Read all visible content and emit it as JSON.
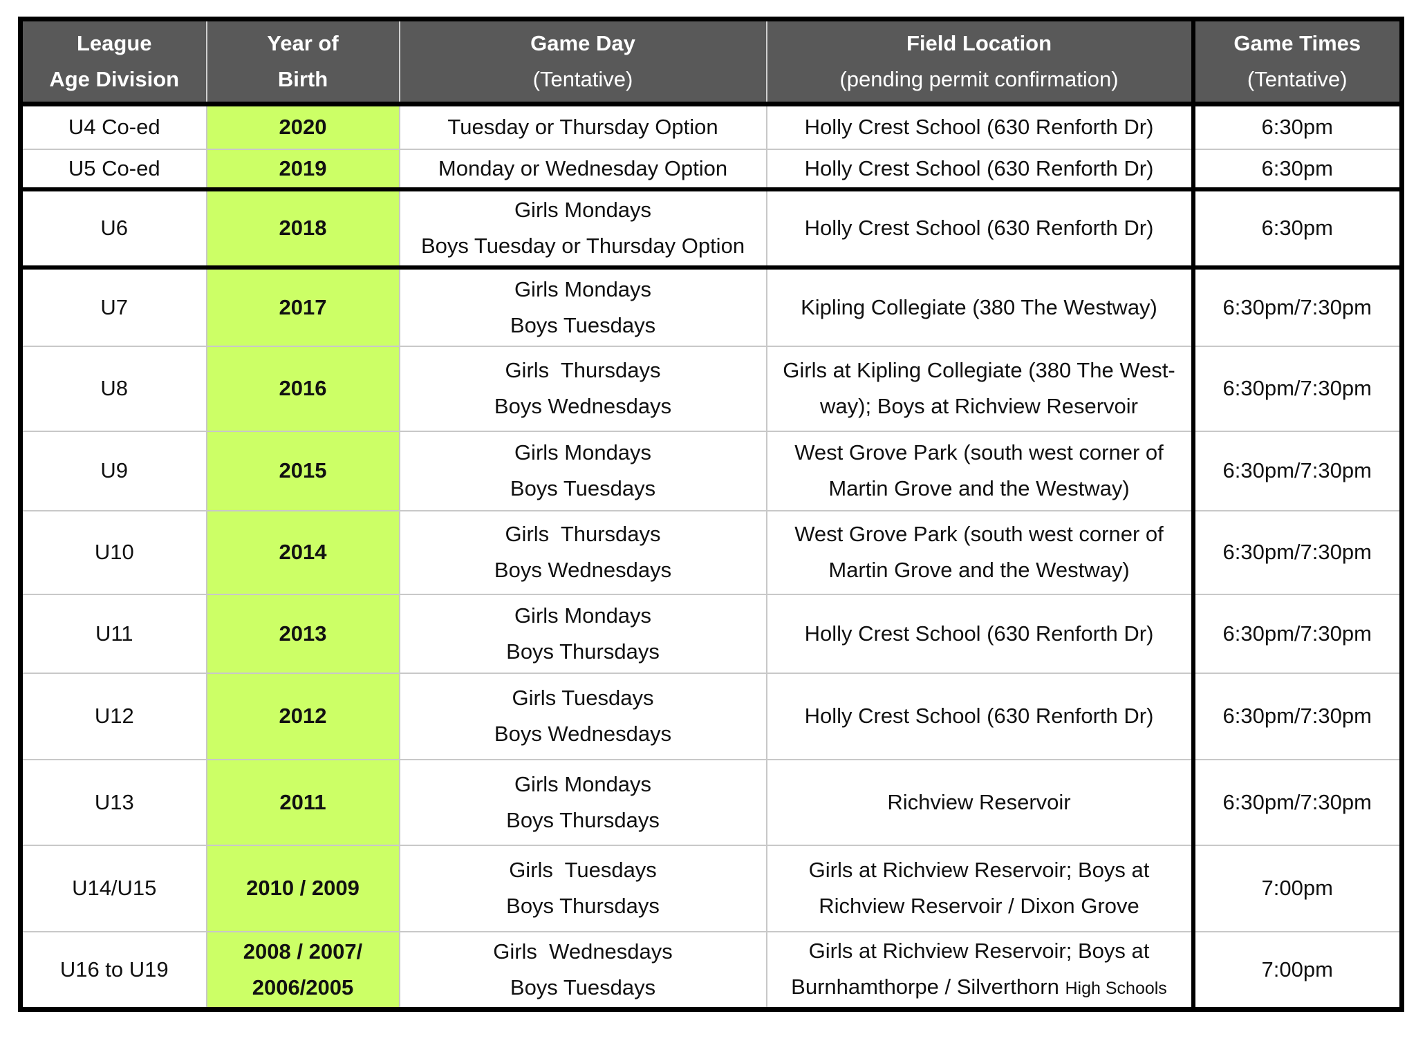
{
  "headers": [
    {
      "line1": "League",
      "line2": "Age Division"
    },
    {
      "line1": "Year of",
      "line2": "Birth"
    },
    {
      "line1": "Game Day",
      "line2": "(Tentative)"
    },
    {
      "line1": "Field Location",
      "line2": "(pending permit confirmation)"
    },
    {
      "line1": "Game Times",
      "line2": "(Tentative)"
    }
  ],
  "rows": [
    {
      "division": "U4 Co-ed",
      "year": "2020",
      "day": [
        "Tuesday or Thursday Option"
      ],
      "location": [
        "Holly Crest School (630 Renforth Dr)"
      ],
      "time": "6:30pm"
    },
    {
      "division": "U5 Co-ed",
      "year": "2019",
      "day": [
        "Monday or Wednesday Option"
      ],
      "location": [
        "Holly Crest School (630 Renforth Dr)"
      ],
      "time": "6:30pm"
    },
    {
      "division": "U6",
      "year": "2018",
      "day": [
        "Girls Mondays",
        "Boys Tuesday or Thursday Option"
      ],
      "location": [
        "Holly Crest School (630 Renforth Dr)"
      ],
      "time": "6:30pm"
    },
    {
      "division": "U7",
      "year": "2017",
      "day": [
        "Girls Mondays",
        "Boys Tuesdays"
      ],
      "location": [
        "Kipling Collegiate (380 The Westway)"
      ],
      "time": "6:30pm/7:30pm"
    },
    {
      "division": "U8",
      "year": "2016",
      "day": [
        "Girls  Thursdays",
        "Boys Wednesdays"
      ],
      "location": [
        "Girls at Kipling Collegiate (380 The West-",
        "way); Boys at Richview Reservoir"
      ],
      "time": "6:30pm/7:30pm"
    },
    {
      "division": "U9",
      "year": "2015",
      "day": [
        "Girls Mondays",
        "Boys Tuesdays"
      ],
      "location": [
        "West Grove Park (south west corner of",
        "Martin Grove and the Westway)"
      ],
      "time": "6:30pm/7:30pm"
    },
    {
      "division": "U10",
      "year": "2014",
      "day": [
        "Girls  Thursdays",
        "Boys Wednesdays"
      ],
      "location": [
        "West Grove Park (south west corner of",
        "Martin Grove and the Westway)"
      ],
      "time": "6:30pm/7:30pm"
    },
    {
      "division": "U11",
      "year": "2013",
      "day": [
        "Girls Mondays",
        "Boys Thursdays"
      ],
      "location": [
        "Holly Crest School (630 Renforth Dr)"
      ],
      "time": "6:30pm/7:30pm"
    },
    {
      "division": "U12",
      "year": "2012",
      "day": [
        "Girls Tuesdays",
        "Boys Wednesdays"
      ],
      "location": [
        "Holly Crest School (630 Renforth Dr)"
      ],
      "time": "6:30pm/7:30pm"
    },
    {
      "division": "U13",
      "year": "2011",
      "day": [
        "Girls Mondays",
        "Boys Thursdays"
      ],
      "location": [
        "Richview Reservoir"
      ],
      "time": "6:30pm/7:30pm"
    },
    {
      "division": "U14/U15",
      "year": "2010 / 2009",
      "day": [
        "Girls  Tuesdays",
        "Boys Thursdays"
      ],
      "location": [
        "Girls at Richview Reservoir; Boys at",
        "Richview Reservoir / Dixon Grove"
      ],
      "time": "7:00pm"
    },
    {
      "division": "U16 to U19",
      "year": "2008 / 2007/ 2006/2005",
      "day": [
        "Girls  Wednesdays",
        "Boys Tuesdays"
      ],
      "location": [
        "Girls at Richview Reservoir; Boys at",
        "Burnhamthorpe / Silverthorn"
      ],
      "location_small": "High Schools",
      "time": "7:00pm"
    }
  ],
  "colors": {
    "header_bg": "#595959",
    "year_bg": "#ccff66",
    "thick_border": "#000000"
  }
}
